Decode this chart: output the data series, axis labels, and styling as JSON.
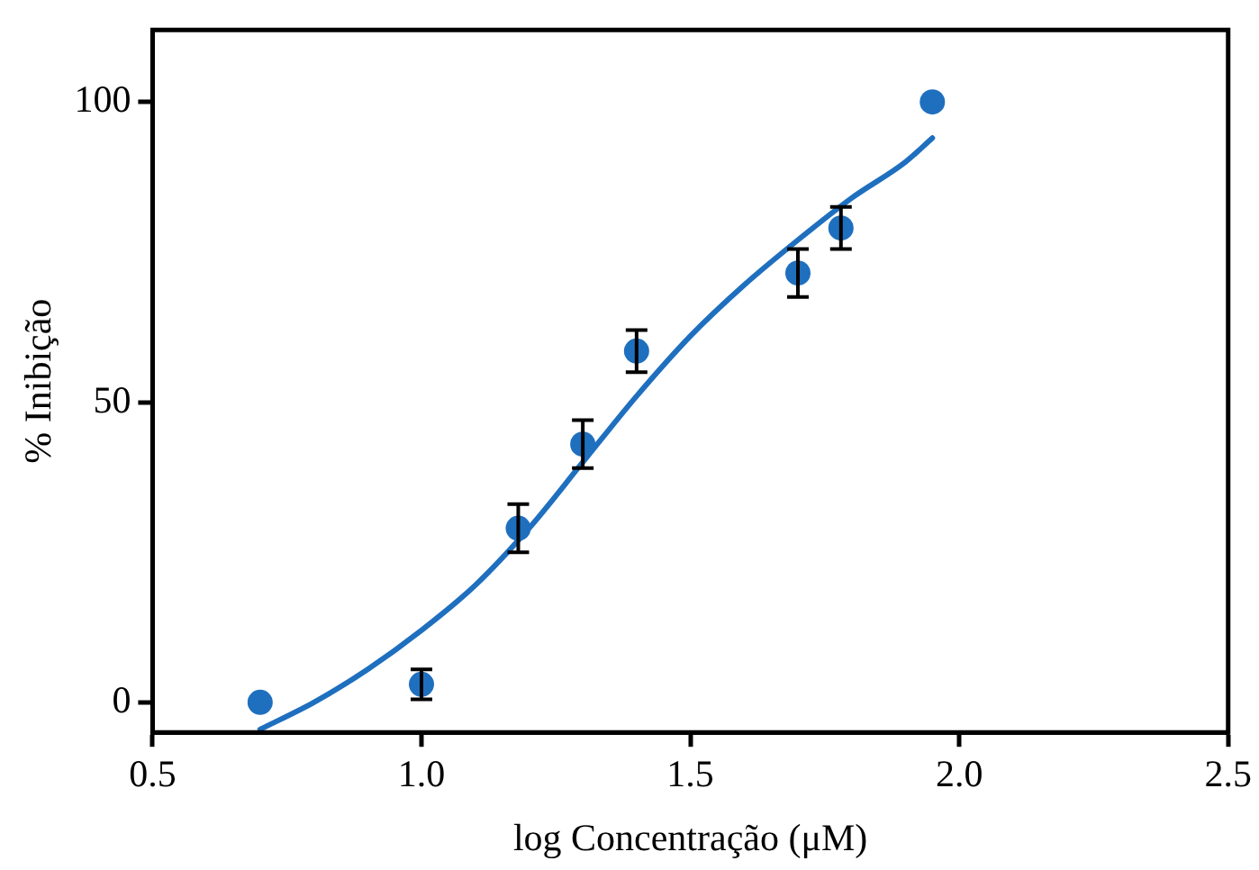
{
  "chart_data": {
    "type": "scatter",
    "xlabel": "log Concentração (μM)",
    "ylabel": "% Inibição",
    "xlim": [
      0.5,
      2.5
    ],
    "xticks": [
      {
        "value": 0.5,
        "label": "0.5"
      },
      {
        "value": 1,
        "label": "1.0"
      },
      {
        "value": 1.5,
        "label": "1.5"
      },
      {
        "value": 2,
        "label": "2.0"
      },
      {
        "value": 2.5,
        "label": "2.5"
      }
    ],
    "ylim": [
      -5,
      112
    ],
    "yticks": [
      0,
      50,
      100
    ],
    "grid": false,
    "legend": false,
    "marker": "circle",
    "series": [
      {
        "color": "#1f6fbf",
        "x": [
          0.7,
          1.0,
          1.18,
          1.3,
          1.4,
          1.7,
          1.78,
          1.95
        ],
        "values": [
          0,
          3,
          29,
          43,
          58.5,
          71.5,
          79,
          100
        ],
        "errors": [
          null,
          2.5,
          4,
          4,
          3.5,
          4,
          3.5,
          null
        ]
      },
      {
        "type": "line",
        "color": "#1f6fbf",
        "marker": "none",
        "line_style": "solid",
        "x": [
          0.7,
          0.8,
          0.9,
          1.0,
          1.1,
          1.2,
          1.3,
          1.4,
          1.5,
          1.6,
          1.7,
          1.8,
          1.9,
          1.95
        ],
        "values": [
          -4.5,
          0,
          5.5,
          12,
          19.5,
          29,
          40,
          51,
          61,
          69.5,
          77,
          84,
          90,
          94
        ]
      }
    ]
  }
}
